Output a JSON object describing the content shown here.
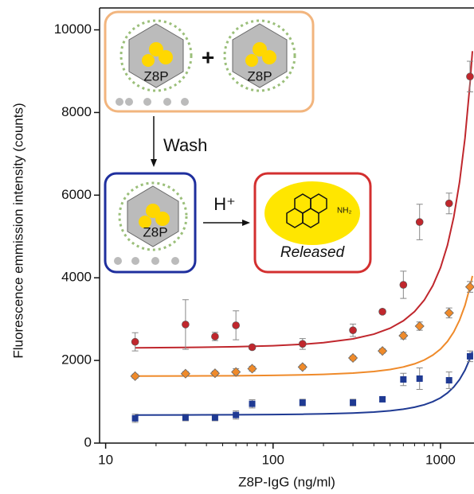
{
  "chart_data": {
    "type": "scatter",
    "x_label": "Z8P-IgG (ng/ml)",
    "y_label": "Fluorescence emmission intensity (counts)",
    "x_scale": "log",
    "xlim": [
      9.2,
      1585
    ],
    "ylim": [
      0,
      10530
    ],
    "xticks": [
      10,
      100,
      1000
    ],
    "xminorticks": [
      20,
      30,
      40,
      50,
      60,
      70,
      80,
      90,
      200,
      300,
      400,
      500,
      600,
      700,
      800,
      900
    ],
    "yticks": [
      0,
      2000,
      4000,
      6000,
      8000,
      10000
    ],
    "x": [
      15,
      30,
      45,
      60,
      75,
      150,
      300,
      450,
      600,
      750,
      1125,
      1500
    ],
    "series": [
      {
        "color": "#c0272d",
        "marker": "circle",
        "values": [
          2450,
          2870,
          2580,
          2850,
          2320,
          2400,
          2730,
          3180,
          3830,
          5350,
          5800,
          8870
        ],
        "errors": [
          220,
          600,
          100,
          350,
          50,
          130,
          150,
          50,
          330,
          430,
          250,
          370
        ]
      },
      {
        "color": "#ef8a2a",
        "marker": "diamond",
        "values": [
          1620,
          1680,
          1690,
          1720,
          1800,
          1840,
          2060,
          2230,
          2600,
          2830,
          3150,
          3780
        ],
        "errors": [
          50,
          50,
          50,
          80,
          60,
          50,
          50,
          50,
          80,
          100,
          120,
          130
        ]
      },
      {
        "color": "#1f3a93",
        "marker": "square",
        "values": [
          600,
          620,
          620,
          680,
          950,
          980,
          980,
          1060,
          1540,
          1560,
          1520,
          2100
        ],
        "errors": [
          100,
          80,
          80,
          100,
          100,
          80,
          80,
          50,
          150,
          260,
          200,
          130
        ]
      }
    ],
    "fit_x": [
      15,
      30,
      60,
      100,
      150,
      200,
      300,
      400,
      500,
      600,
      700,
      800,
      900,
      1000,
      1100,
      1200,
      1300,
      1400,
      1500,
      1550
    ],
    "fits": [
      {
        "color": "#c0272d",
        "values": [
          2305,
          2313,
          2331,
          2356,
          2391,
          2429,
          2522,
          2636,
          2780,
          2959,
          3183,
          3462,
          3811,
          4247,
          4790,
          5471,
          6319,
          7378,
          8703,
          9485
        ]
      },
      {
        "color": "#ef8a2a",
        "values": [
          1621,
          1624,
          1629,
          1638,
          1650,
          1663,
          1694,
          1733,
          1781,
          1842,
          1917,
          2011,
          2129,
          2276,
          2460,
          2689,
          2976,
          3333,
          3780,
          4044
        ]
      },
      {
        "color": "#1f3a93",
        "values": [
          680,
          682,
          686,
          691,
          699,
          707,
          727,
          751,
          782,
          820,
          868,
          928,
          1003,
          1096,
          1212,
          1358,
          1539,
          1766,
          2049,
          2216
        ]
      }
    ]
  },
  "inset": {
    "particle_1": "Z8P",
    "plus": "+",
    "particle_2": "Z8P",
    "wash": "Wash",
    "particle_3": "Z8P",
    "acid": "H⁺",
    "amine": "NH₂",
    "released": "Released"
  }
}
